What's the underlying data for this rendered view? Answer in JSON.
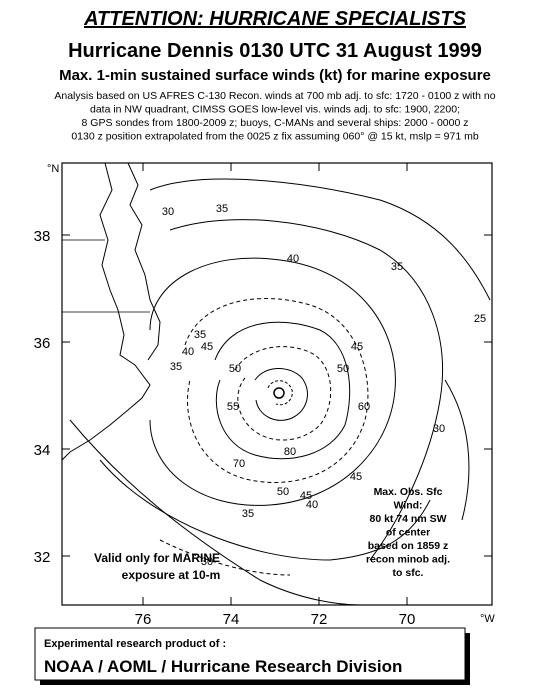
{
  "header": {
    "banner": "ATTENTION: HURRICANE SPECIALISTS",
    "title": "Hurricane Dennis 0130 UTC 31 August 1999",
    "subtitle": "Max. 1-min sustained surface winds (kt) for marine exposure",
    "notes": [
      "Analysis based on US AFRES C-130 Recon. winds at 700 mb adj. to sfc:  1720 - 0100 z with no",
      "data in NW quadrant,  CIMSS GOES low-level vis. winds adj. to sfc:  1900, 2200;",
      "8 GPS sondes from 1800-2009 z; buoys, C-MANs and several ships:  2000 - 0000 z",
      "0130 z position extrapolated from the 0025 z fix assuming  060° @  15 kt, mslp = 971 mb"
    ]
  },
  "map": {
    "lat_unit": "°N",
    "lon_unit": "°W",
    "lat_ticks": [
      38,
      36,
      34,
      32
    ],
    "lon_ticks": [
      76,
      74,
      72,
      70
    ],
    "contour_labels": [
      "30",
      "35",
      "40",
      "35",
      "25",
      "35",
      "40",
      "45",
      "35",
      "50",
      "45",
      "50",
      "60",
      "55",
      "70",
      "80",
      "50",
      "45",
      "40",
      "35",
      "45",
      "30",
      "30"
    ],
    "marine_note": [
      "Valid only for MARINE",
      "exposure at 10-m"
    ],
    "max_obs_note": [
      "Max. Obs. Sfc",
      "Wind:",
      "80 kt  74 nm SW",
      "of center",
      "based on 1859 z",
      "recon minob adj.",
      "to sfc."
    ]
  },
  "footer": {
    "line1": "Experimental research product of :",
    "line2": "NOAA / AOML / Hurricane Research Division"
  }
}
